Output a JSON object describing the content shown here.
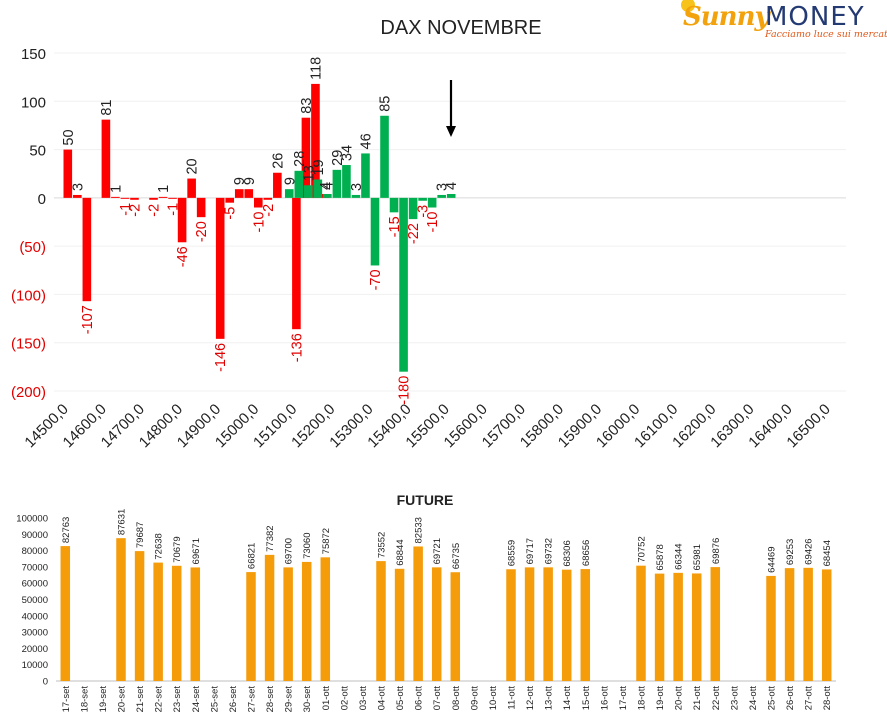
{
  "logo": {
    "brand_sunny": "Sunny",
    "brand_money": "MONEY",
    "tagline": "Facciamo luce sui mercati"
  },
  "colors": {
    "call_red": "#ff0000",
    "put_green": "#00b050",
    "future_orange": "#f59c0b",
    "negative_text": "#e00000",
    "text": "#222222"
  },
  "arrow_marker": {
    "strike": "15500,0",
    "direction": "down"
  },
  "chart_data": [
    {
      "type": "bar",
      "title": "DAX NOVEMBRE",
      "xlabel": "",
      "ylabel": "",
      "ylim": [
        -200,
        150
      ],
      "yticks": [
        "150",
        "100",
        "50",
        "0",
        "(50)",
        "(100)",
        "(150)",
        "(200)"
      ],
      "ytick_values": [
        150,
        100,
        50,
        0,
        -50,
        -100,
        -150,
        -200
      ],
      "grid": "horizontal",
      "legend": "none",
      "categories": [
        "14500,0",
        "14600,0",
        "14700,0",
        "14800,0",
        "14900,0",
        "15000,0",
        "15100,0",
        "15200,0",
        "15300,0",
        "15400,0",
        "15500,0",
        "15600,0",
        "15700,0",
        "15800,0",
        "15900,0",
        "16000,0",
        "16100,0",
        "16200,0",
        "16300,0",
        "16400,0",
        "16500,0"
      ],
      "series": [
        {
          "color": "#ff0000",
          "points": [
            {
              "x": 14500,
              "y": 50
            },
            {
              "x": 14525,
              "y": 3
            },
            {
              "x": 14550,
              "y": -107
            },
            {
              "x": 14600,
              "y": 81
            },
            {
              "x": 14625,
              "y": 1
            },
            {
              "x": 14650,
              "y": -1
            },
            {
              "x": 14675,
              "y": -2
            },
            {
              "x": 14725,
              "y": -2
            },
            {
              "x": 14750,
              "y": 1
            },
            {
              "x": 14775,
              "y": -1
            },
            {
              "x": 14800,
              "y": -46
            },
            {
              "x": 14825,
              "y": 20
            },
            {
              "x": 14850,
              "y": -20
            },
            {
              "x": 14900,
              "y": -146
            },
            {
              "x": 14925,
              "y": -5
            },
            {
              "x": 14950,
              "y": 9
            },
            {
              "x": 14975,
              "y": 9
            },
            {
              "x": 15000,
              "y": -10
            },
            {
              "x": 15025,
              "y": -2
            },
            {
              "x": 15050,
              "y": 26
            },
            {
              "x": 15100,
              "y": -136
            },
            {
              "x": 15125,
              "y": 83
            },
            {
              "x": 15150,
              "y": 118
            },
            {
              "x": 15175,
              "y": 4
            }
          ]
        },
        {
          "color": "#00b050",
          "points": [
            {
              "x": 15075,
              "y": 9
            },
            {
              "x": 15100,
              "y": 28
            },
            {
              "x": 15125,
              "y": 13
            },
            {
              "x": 15150,
              "y": 19
            },
            {
              "x": 15175,
              "y": 4
            },
            {
              "x": 15200,
              "y": 29
            },
            {
              "x": 15225,
              "y": 34
            },
            {
              "x": 15250,
              "y": 3
            },
            {
              "x": 15275,
              "y": 46
            },
            {
              "x": 15300,
              "y": -70
            },
            {
              "x": 15325,
              "y": 85
            },
            {
              "x": 15350,
              "y": -15
            },
            {
              "x": 15375,
              "y": -180
            },
            {
              "x": 15400,
              "y": -22
            },
            {
              "x": 15425,
              "y": -3
            },
            {
              "x": 15450,
              "y": -10
            },
            {
              "x": 15475,
              "y": 3
            },
            {
              "x": 15500,
              "y": 4
            }
          ]
        }
      ]
    },
    {
      "type": "bar",
      "title": "FUTURE",
      "xlabel": "",
      "ylabel": "",
      "ylim": [
        0,
        100000
      ],
      "yticks": [
        "100000",
        "90000",
        "80000",
        "70000",
        "60000",
        "50000",
        "40000",
        "30000",
        "20000",
        "10000",
        "0"
      ],
      "ytick_values": [
        100000,
        90000,
        80000,
        70000,
        60000,
        50000,
        40000,
        30000,
        20000,
        10000,
        0
      ],
      "legend": "none",
      "categories": [
        "17-set",
        "18-set",
        "19-set",
        "20-set",
        "21-set",
        "22-set",
        "23-set",
        "24-set",
        "25-set",
        "26-set",
        "27-set",
        "28-set",
        "29-set",
        "30-set",
        "01-ott",
        "02-ott",
        "03-ott",
        "04-ott",
        "05-ott",
        "06-ott",
        "07-ott",
        "08-ott",
        "09-ott",
        "10-ott",
        "11-ott",
        "12-ott",
        "13-ott",
        "14-ott",
        "15-ott",
        "16-ott",
        "17-ott",
        "18-ott",
        "19-ott",
        "20-ott",
        "21-ott",
        "22-ott",
        "23-ott",
        "24-ott",
        "25-ott",
        "26-ott",
        "27-ott",
        "28-ott"
      ],
      "values": [
        82763,
        null,
        null,
        87631,
        79687,
        72638,
        70679,
        69671,
        null,
        null,
        66821,
        77382,
        69700,
        73060,
        75872,
        null,
        null,
        73552,
        68844,
        82533,
        69721,
        66735,
        null,
        null,
        68559,
        69717,
        69732,
        68306,
        68656,
        null,
        null,
        70752,
        65878,
        66344,
        65981,
        69876,
        null,
        null,
        64469,
        69253,
        69426,
        68454
      ],
      "labels": [
        "82763",
        "",
        "",
        "87631",
        "79687",
        "72638",
        "70679",
        "69671",
        "",
        "",
        "66821",
        "77382",
        "69700",
        "73060",
        "75872",
        "",
        "",
        "73552",
        "68844",
        "82533",
        "69721",
        "66735",
        "",
        "",
        "68559",
        "69717",
        "69732",
        "68306",
        "68656",
        "",
        "",
        "70752",
        "65878",
        "66344",
        "65981",
        "69876",
        "",
        "",
        "64469",
        "69253",
        "69426",
        "68454"
      ]
    }
  ]
}
